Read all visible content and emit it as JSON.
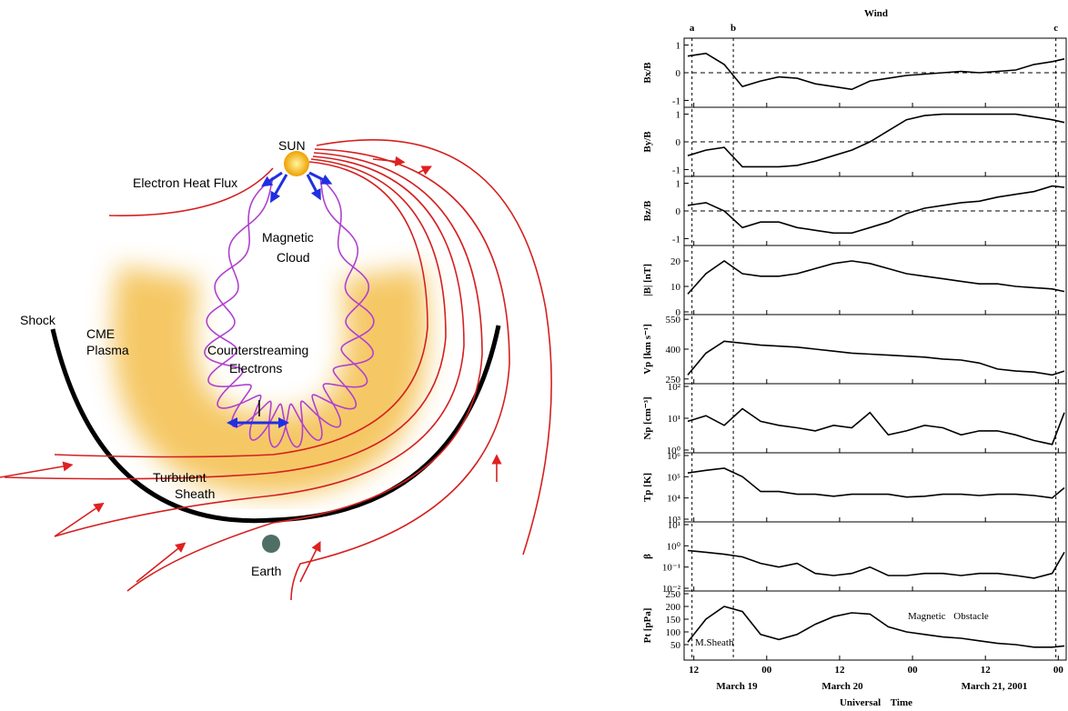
{
  "diagram": {
    "labels": [
      "SUN",
      "Electron Heat Flux",
      "Magnetic",
      "Cloud",
      "Shock",
      "CME",
      "Plasma",
      "Counterstreaming",
      "Electrons",
      "Turbulent",
      "Sheath",
      "Earth"
    ]
  },
  "events": [
    {
      "label": "a",
      "x": -12.3
    },
    {
      "label": "b",
      "x": -5.5
    },
    {
      "label": "c",
      "x": 47.6
    }
  ],
  "date_labels": [
    "March 19",
    "March 20",
    "March 21, 2001"
  ],
  "annotations": [
    "M.Sheath",
    "Magnetic Obstacle"
  ],
  "chart_data": [
    {
      "type": "line",
      "title": "Wind",
      "ylabel": "Bx/B",
      "color": "#000",
      "xlim": [
        -13.6,
        49.3
      ],
      "ylim": [
        -1.15,
        1.15
      ],
      "yticks": [
        -1,
        0,
        1
      ],
      "ref_line": 0,
      "x": [
        -13,
        -10,
        -7,
        -4,
        -1,
        2,
        5,
        8,
        11,
        14,
        17,
        20,
        23,
        26,
        29,
        32,
        35,
        38,
        41,
        44,
        47,
        49
      ],
      "values": [
        0.6,
        0.7,
        0.3,
        -0.5,
        -0.3,
        -0.15,
        -0.2,
        -0.4,
        -0.5,
        -0.6,
        -0.3,
        -0.2,
        -0.1,
        -0.05,
        0,
        0.05,
        0,
        0.05,
        0.1,
        0.3,
        0.4,
        0.5
      ]
    },
    {
      "type": "line",
      "ylabel": "By/B",
      "color": "#000",
      "xlim": [
        -13.6,
        49.3
      ],
      "ylim": [
        -1.15,
        1.15
      ],
      "yticks": [
        -1,
        0,
        1
      ],
      "ref_line": 0,
      "x": [
        -13,
        -10,
        -7,
        -4,
        -1,
        2,
        5,
        8,
        11,
        14,
        17,
        20,
        23,
        26,
        29,
        32,
        35,
        38,
        41,
        44,
        47,
        49
      ],
      "values": [
        -0.5,
        -0.3,
        -0.2,
        -0.9,
        -0.9,
        -0.9,
        -0.85,
        -0.7,
        -0.5,
        -0.3,
        0,
        0.4,
        0.8,
        0.95,
        1,
        1,
        1,
        1,
        1,
        0.9,
        0.8,
        0.7
      ]
    },
    {
      "type": "line",
      "ylabel": "Bz/B",
      "color": "#000",
      "xlim": [
        -13.6,
        49.3
      ],
      "ylim": [
        -1.15,
        1.15
      ],
      "yticks": [
        -1,
        0,
        1
      ],
      "ref_line": 0,
      "x": [
        -13,
        -10,
        -7,
        -4,
        -1,
        2,
        5,
        8,
        11,
        14,
        17,
        20,
        23,
        26,
        29,
        32,
        35,
        38,
        41,
        44,
        47,
        49
      ],
      "values": [
        0.2,
        0.3,
        0,
        -0.6,
        -0.4,
        -0.4,
        -0.6,
        -0.7,
        -0.8,
        -0.8,
        -0.6,
        -0.4,
        -0.1,
        0.1,
        0.2,
        0.3,
        0.35,
        0.5,
        0.6,
        0.7,
        0.9,
        0.85
      ]
    },
    {
      "type": "line",
      "ylabel": "|B| [nT]",
      "color": "#000",
      "xlim": [
        -13.6,
        49.3
      ],
      "ylim": [
        0,
        25
      ],
      "yticks": [
        0,
        10,
        20
      ],
      "x": [
        -13,
        -10,
        -7,
        -4,
        -1,
        2,
        5,
        8,
        11,
        14,
        17,
        20,
        23,
        26,
        29,
        32,
        35,
        38,
        41,
        44,
        47,
        49
      ],
      "values": [
        7,
        15,
        20,
        15,
        14,
        14,
        15,
        17,
        19,
        20,
        19,
        17,
        15,
        14,
        13,
        12,
        11,
        11,
        10,
        9.5,
        9,
        8
      ]
    },
    {
      "type": "line",
      "ylabel": "Vp [km s⁻¹]",
      "color": "#000",
      "xlim": [
        -13.6,
        49.3
      ],
      "ylim": [
        240,
        560
      ],
      "yticks": [
        250,
        400,
        550
      ],
      "x": [
        -13,
        -10,
        -7,
        -4,
        -1,
        2,
        5,
        8,
        11,
        14,
        17,
        20,
        23,
        26,
        29,
        32,
        35,
        38,
        41,
        44,
        47,
        49
      ],
      "values": [
        270,
        380,
        440,
        430,
        420,
        415,
        410,
        400,
        390,
        380,
        375,
        370,
        365,
        360,
        350,
        345,
        330,
        300,
        290,
        285,
        270,
        290
      ]
    },
    {
      "type": "line",
      "ylabel": "Np [cm⁻³]",
      "color": "#000",
      "log": true,
      "xlim": [
        -13.6,
        49.3
      ],
      "ylim": [
        1,
        100
      ],
      "yticks": [
        {
          "value": 1,
          "label": "10⁰"
        },
        {
          "value": 10,
          "label": "10¹"
        },
        {
          "value": 100,
          "label": "10²"
        }
      ],
      "x": [
        -13,
        -10,
        -7,
        -4,
        -1,
        2,
        5,
        8,
        11,
        14,
        17,
        20,
        23,
        26,
        29,
        32,
        35,
        38,
        41,
        44,
        47,
        49
      ],
      "values": [
        8,
        12,
        6,
        20,
        8,
        6,
        5,
        4,
        6,
        5,
        15,
        3,
        4,
        6,
        5,
        3,
        4,
        4,
        3,
        2,
        1.5,
        15
      ]
    },
    {
      "type": "line",
      "ylabel": "Tp [K]",
      "color": "#000",
      "log": true,
      "xlim": [
        -13.6,
        49.3
      ],
      "ylim": [
        1000,
        1000000
      ],
      "yticks": [
        {
          "value": 1000,
          "label": "10³"
        },
        {
          "value": 10000,
          "label": "10⁴"
        },
        {
          "value": 100000,
          "label": "10⁵"
        },
        {
          "value": 1000000,
          "label": "10⁶"
        }
      ],
      "x": [
        -13,
        -10,
        -7,
        -4,
        -1,
        2,
        5,
        8,
        11,
        14,
        17,
        20,
        23,
        26,
        29,
        32,
        35,
        38,
        41,
        44,
        47,
        49
      ],
      "values": [
        150000,
        200000,
        250000,
        100000,
        20000,
        20000,
        15000,
        15000,
        12000,
        15000,
        15000,
        15000,
        11000,
        12000,
        15000,
        15000,
        13000,
        15000,
        15000,
        13000,
        10000,
        30000
      ]
    },
    {
      "type": "line",
      "ylabel": "β",
      "color": "#000",
      "log": true,
      "xlim": [
        -13.6,
        49.3
      ],
      "ylim": [
        0.01,
        10
      ],
      "yticks": [
        {
          "value": 0.01,
          "label": "10⁻²"
        },
        {
          "value": 0.1,
          "label": "10⁻¹"
        },
        {
          "value": 1,
          "label": "10⁰"
        },
        {
          "value": 10,
          "label": "10¹"
        }
      ],
      "x": [
        -13,
        -10,
        -7,
        -4,
        -1,
        2,
        5,
        8,
        11,
        14,
        17,
        20,
        23,
        26,
        29,
        32,
        35,
        38,
        41,
        44,
        47,
        49
      ],
      "values": [
        0.6,
        0.5,
        0.4,
        0.3,
        0.15,
        0.1,
        0.15,
        0.05,
        0.04,
        0.05,
        0.1,
        0.04,
        0.04,
        0.05,
        0.05,
        0.04,
        0.05,
        0.05,
        0.04,
        0.03,
        0.05,
        0.5
      ]
    },
    {
      "type": "line",
      "ylabel": "Pt [pPa]",
      "xlabel": "Universal Time",
      "color": "#000",
      "xlim": [
        -13.6,
        49.3
      ],
      "ylim": [
        0,
        250
      ],
      "yticks": [
        50,
        100,
        150,
        200,
        250
      ],
      "xticks": [
        {
          "value": -12,
          "label": "12"
        },
        {
          "value": 0,
          "label": "00"
        },
        12,
        {
          "value": 24,
          "label": "00"
        },
        {
          "value": 36,
          "label": "12"
        },
        {
          "value": 48,
          "label": "00"
        }
      ],
      "x": [
        -13,
        -10,
        -7,
        -4,
        -1,
        2,
        5,
        8,
        11,
        14,
        17,
        20,
        23,
        26,
        29,
        32,
        35,
        38,
        41,
        44,
        47,
        49
      ],
      "values": [
        60,
        150,
        200,
        180,
        90,
        70,
        90,
        130,
        160,
        175,
        170,
        120,
        100,
        90,
        80,
        75,
        65,
        55,
        50,
        40,
        40,
        45
      ]
    }
  ]
}
